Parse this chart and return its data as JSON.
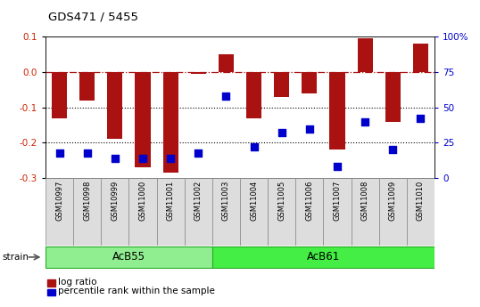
{
  "title": "GDS471 / 5455",
  "samples": [
    "GSM10997",
    "GSM10998",
    "GSM10999",
    "GSM11000",
    "GSM11001",
    "GSM11002",
    "GSM11003",
    "GSM11004",
    "GSM11005",
    "GSM11006",
    "GSM11007",
    "GSM11008",
    "GSM11009",
    "GSM11010"
  ],
  "log_ratio": [
    -0.13,
    -0.08,
    -0.19,
    -0.27,
    -0.285,
    -0.005,
    0.05,
    -0.13,
    -0.07,
    -0.06,
    -0.22,
    0.095,
    -0.14,
    0.08
  ],
  "percentile_rank": [
    18,
    18,
    14,
    14,
    14,
    18,
    58,
    22,
    32,
    35,
    8,
    40,
    20,
    42
  ],
  "bar_color": "#aa1111",
  "dot_color": "#0000cc",
  "ylim_left": [
    -0.3,
    0.1
  ],
  "ylim_right": [
    0,
    100
  ],
  "yticks_left": [
    -0.3,
    -0.2,
    -0.1,
    0.0,
    0.1
  ],
  "yticks_right": [
    0,
    25,
    50,
    75,
    100
  ],
  "yticklabels_right": [
    "0",
    "25",
    "50",
    "75",
    "100%"
  ],
  "dotted_lines": [
    -0.1,
    -0.2
  ],
  "group_spans": [
    [
      0,
      6,
      "AcB55",
      "#90ee90"
    ],
    [
      6,
      14,
      "AcB61",
      "#44ee44"
    ]
  ],
  "strain_label": "strain",
  "legend_bar_label": "log ratio",
  "legend_dot_label": "percentile rank within the sample",
  "background_color": "#ffffff",
  "tick_label_color_left": "#cc2200",
  "tick_label_color_right": "#0000cc",
  "bar_width": 0.55,
  "dot_size": 28
}
